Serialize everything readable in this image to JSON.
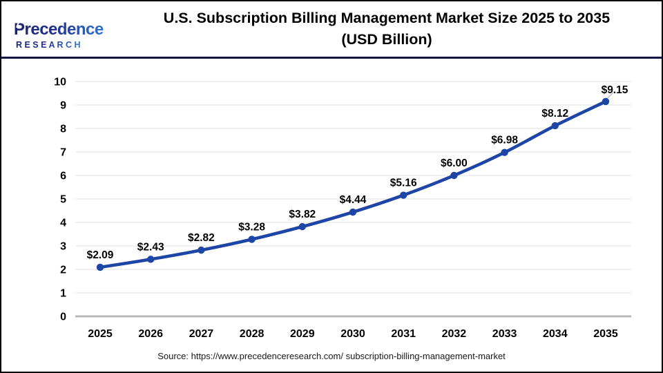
{
  "logo": {
    "brand": "Precedence",
    "research": "R E S E A R C H",
    "color_dark": "#1e2468",
    "color_light": "#2f74d0"
  },
  "header": {
    "title_line1": "U.S. Subscription Billing Management Market Size 2025 to 2035",
    "title_line2": "(USD Billion)"
  },
  "source": {
    "text": "Source: https://www.precedenceresearch.com/ subscription-billing-management-market"
  },
  "colors": {
    "divider_navy": "#101544",
    "grid": "#ececec",
    "zero_axis": "#b8b8b8",
    "tick_text": "#000000",
    "leader": "#aaaaaa"
  },
  "chart_data": {
    "type": "line",
    "title": "U.S. Subscription Billing Management Market Size 2025 to 2035 (USD Billion)",
    "categories": [
      "2025",
      "2026",
      "2027",
      "2028",
      "2029",
      "2030",
      "2031",
      "2032",
      "2033",
      "2034",
      "2035"
    ],
    "series": [
      {
        "name": "U.S. Subscription Billing Management Market Size (USD Billion)",
        "values": [
          2.09,
          2.43,
          2.82,
          3.28,
          3.82,
          4.44,
          5.16,
          6.0,
          6.98,
          8.12,
          9.15
        ]
      }
    ],
    "data_labels": [
      "$2.09",
      "$2.43",
      "$2.82",
      "$3.28",
      "$3.82",
      "$4.44",
      "$5.16",
      "$6.00",
      "$6.98",
      "$8.12",
      "$9.15"
    ],
    "ylim": [
      0,
      10
    ],
    "ytick_step": 1,
    "yticks": [
      0,
      1,
      2,
      3,
      4,
      5,
      6,
      7,
      8,
      9,
      10
    ],
    "xlabel": "",
    "ylabel": "",
    "grid": true,
    "legend": "none",
    "line_color": "#1c45a5",
    "marker_color": "#1c45a5",
    "label_color": "#000000"
  }
}
